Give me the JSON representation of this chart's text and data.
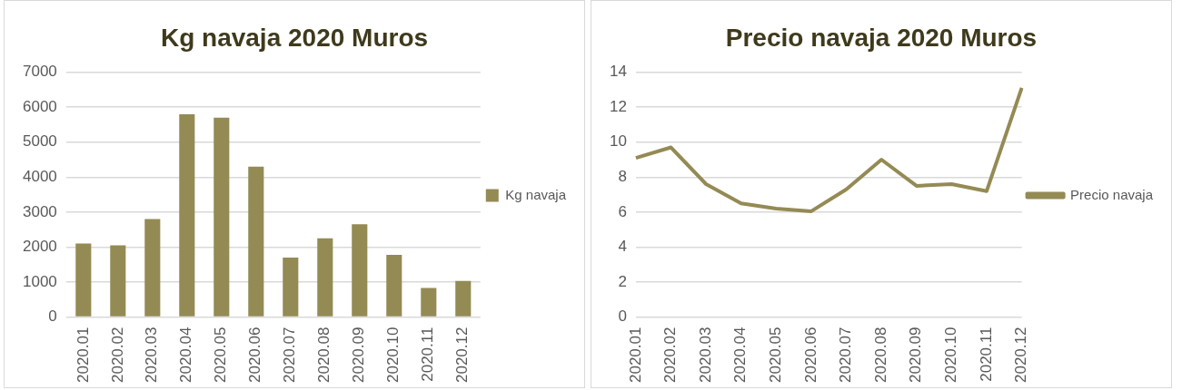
{
  "chart_data": [
    {
      "type": "bar",
      "title": "Kg navaja 2020 Muros",
      "categories": [
        "2020.01",
        "2020.02",
        "2020.03",
        "2020.04",
        "2020.05",
        "2020.06",
        "2020.07",
        "2020.08",
        "2020.09",
        "2020.10",
        "2020.11",
        "2020.12"
      ],
      "series": [
        {
          "name": "Kg navaja",
          "color": "#948a54",
          "values": [
            2100,
            2050,
            2800,
            5800,
            5700,
            4300,
            1700,
            2250,
            2650,
            1780,
            830,
            1030
          ]
        }
      ],
      "ylim": [
        0,
        7000
      ],
      "yticks": [
        0,
        1000,
        2000,
        3000,
        4000,
        5000,
        6000,
        7000
      ],
      "grid": "y",
      "legend": "right"
    },
    {
      "type": "line",
      "title": "Precio navaja 2020 Muros",
      "categories": [
        "2020.01",
        "2020.02",
        "2020.03",
        "2020.04",
        "2020.05",
        "2020.06",
        "2020.07",
        "2020.08",
        "2020.09",
        "2020.10",
        "2020.11",
        "2020.12"
      ],
      "series": [
        {
          "name": "Precio navaja",
          "color": "#948a54",
          "values": [
            9.1,
            9.7,
            7.6,
            6.5,
            6.2,
            6.05,
            7.3,
            9.0,
            7.5,
            7.6,
            7.2,
            13.1
          ]
        }
      ],
      "ylim": [
        0,
        14
      ],
      "yticks": [
        0,
        2,
        4,
        6,
        8,
        10,
        12,
        14
      ],
      "grid": "y",
      "legend": "right",
      "marker": "none"
    }
  ]
}
